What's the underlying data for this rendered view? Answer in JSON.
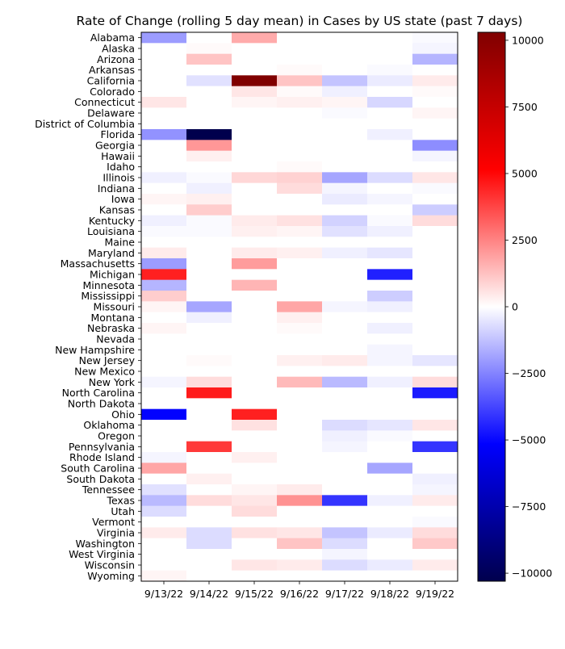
{
  "chart_data": {
    "type": "heatmap",
    "title": "Rate of Change (rolling 5 day mean) in Cases by US state (past 7 days)",
    "x": [
      "9/13/22",
      "9/14/22",
      "9/15/22",
      "9/16/22",
      "9/17/22",
      "9/18/22",
      "9/19/22"
    ],
    "y": [
      "Alabama",
      "Alaska",
      "Arizona",
      "Arkansas",
      "California",
      "Colorado",
      "Connecticut",
      "Delaware",
      "District of Columbia",
      "Florida",
      "Georgia",
      "Hawaii",
      "Idaho",
      "Illinois",
      "Indiana",
      "Iowa",
      "Kansas",
      "Kentucky",
      "Louisiana",
      "Maine",
      "Maryland",
      "Massachusetts",
      "Michigan",
      "Minnesota",
      "Mississippi",
      "Missouri",
      "Montana",
      "Nebraska",
      "Nevada",
      "New Hampshire",
      "New Jersey",
      "New Mexico",
      "New York",
      "North Carolina",
      "North Dakota",
      "Ohio",
      "Oklahoma",
      "Oregon",
      "Pennsylvania",
      "Rhode Island",
      "South Carolina",
      "South Dakota",
      "Tennessee",
      "Texas",
      "Utah",
      "Vermont",
      "Virginia",
      "Washington",
      "West Virginia",
      "Wisconsin",
      "Wyoming"
    ],
    "values": [
      [
        -2000,
        0,
        1700,
        0,
        0,
        0,
        -100
      ],
      [
        0,
        100,
        0,
        0,
        0,
        0,
        -200
      ],
      [
        0,
        1200,
        0,
        0,
        0,
        0,
        -1500
      ],
      [
        0,
        0,
        0,
        100,
        0,
        -100,
        0
      ],
      [
        0,
        -600,
        10300,
        1200,
        -1200,
        -400,
        400
      ],
      [
        0,
        0,
        500,
        100,
        -300,
        0,
        100
      ],
      [
        500,
        0,
        200,
        300,
        200,
        -800,
        0
      ],
      [
        0,
        0,
        0,
        0,
        -100,
        0,
        200
      ],
      [
        0,
        0,
        0,
        0,
        0,
        0,
        0
      ],
      [
        -2200,
        -10300,
        0,
        0,
        0,
        -300,
        0
      ],
      [
        0,
        2100,
        0,
        0,
        0,
        0,
        -2300
      ],
      [
        0,
        300,
        0,
        0,
        0,
        0,
        -200
      ],
      [
        0,
        0,
        0,
        100,
        0,
        0,
        0
      ],
      [
        -300,
        -100,
        800,
        900,
        -1800,
        -700,
        500
      ],
      [
        0,
        -300,
        0,
        700,
        -200,
        0,
        -100
      ],
      [
        200,
        300,
        0,
        0,
        -400,
        -200,
        0
      ],
      [
        0,
        1000,
        0,
        0,
        0,
        0,
        -1000
      ],
      [
        -300,
        -100,
        400,
        600,
        -900,
        -100,
        700
      ],
      [
        -100,
        -100,
        300,
        200,
        -600,
        -300,
        0
      ],
      [
        0,
        0,
        0,
        0,
        0,
        0,
        0
      ],
      [
        400,
        0,
        400,
        300,
        -300,
        -500,
        0
      ],
      [
        -2000,
        0,
        2000,
        0,
        0,
        0,
        0
      ],
      [
        4500,
        0,
        0,
        0,
        0,
        -4500,
        0
      ],
      [
        -1500,
        0,
        1500,
        0,
        0,
        0,
        0
      ],
      [
        1000,
        0,
        0,
        0,
        0,
        -1000,
        0
      ],
      [
        200,
        -1800,
        0,
        1800,
        -200,
        -300,
        0
      ],
      [
        0,
        -300,
        0,
        300,
        0,
        0,
        0
      ],
      [
        200,
        0,
        0,
        100,
        0,
        -300,
        0
      ],
      [
        0,
        0,
        0,
        0,
        0,
        0,
        0
      ],
      [
        0,
        0,
        0,
        0,
        0,
        -200,
        0
      ],
      [
        0,
        100,
        0,
        300,
        400,
        -200,
        -500
      ],
      [
        0,
        0,
        0,
        0,
        0,
        0,
        0
      ],
      [
        -200,
        700,
        0,
        1400,
        -1400,
        -300,
        700
      ],
      [
        0,
        4600,
        0,
        0,
        0,
        0,
        -4600
      ],
      [
        0,
        0,
        0,
        0,
        0,
        0,
        0
      ],
      [
        -5100,
        0,
        4500,
        0,
        0,
        0,
        0
      ],
      [
        0,
        0,
        600,
        0,
        -700,
        -500,
        500
      ],
      [
        0,
        0,
        0,
        0,
        -300,
        -100,
        0
      ],
      [
        0,
        4000,
        0,
        0,
        -200,
        0,
        -4100
      ],
      [
        -200,
        0,
        300,
        0,
        0,
        0,
        0
      ],
      [
        1800,
        0,
        0,
        0,
        0,
        -1800,
        0
      ],
      [
        0,
        300,
        0,
        0,
        0,
        0,
        -300
      ],
      [
        -600,
        0,
        200,
        400,
        0,
        0,
        -200
      ],
      [
        -1400,
        700,
        500,
        2200,
        -4100,
        -300,
        400
      ],
      [
        -700,
        0,
        700,
        0,
        0,
        0,
        0
      ],
      [
        0,
        0,
        0,
        0,
        0,
        0,
        -100
      ],
      [
        400,
        -700,
        600,
        500,
        -1200,
        -400,
        700
      ],
      [
        0,
        -700,
        0,
        1200,
        -700,
        0,
        1100
      ],
      [
        0,
        0,
        0,
        0,
        -200,
        0,
        0
      ],
      [
        0,
        0,
        500,
        400,
        -700,
        -400,
        400
      ],
      [
        200,
        0,
        0,
        0,
        0,
        0,
        0
      ]
    ],
    "colormap": "seismic",
    "vmin": -10300,
    "vmax": 10300,
    "colorbar_ticks": [
      -10000,
      -7500,
      -5000,
      -2500,
      0,
      2500,
      5000,
      7500,
      10000
    ],
    "colorbar_tick_labels": [
      "−10000",
      "−7500",
      "−5000",
      "−2500",
      "0",
      "2500",
      "5000",
      "7500",
      "10000"
    ],
    "grid": false,
    "legend": "colorbar-right"
  }
}
